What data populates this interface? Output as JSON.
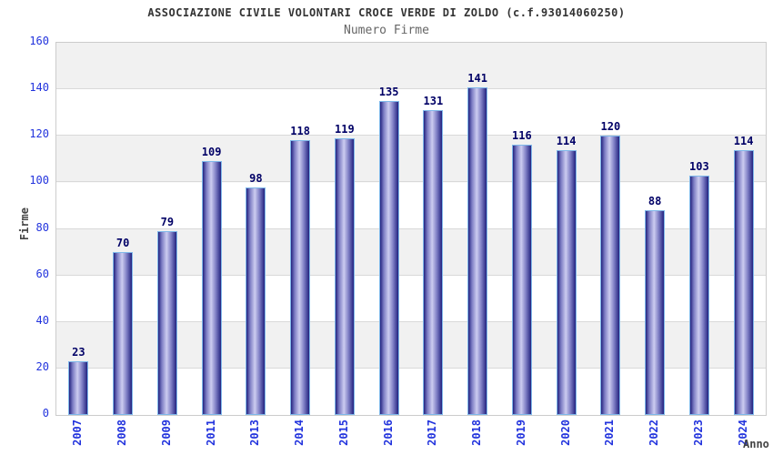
{
  "chart_data": {
    "type": "bar",
    "title": "ASSOCIAZIONE CIVILE VOLONTARI CROCE VERDE DI ZOLDO (c.f.93014060250)",
    "subtitle": "Numero Firme",
    "xlabel": "Anno",
    "ylabel": "Firme",
    "categories": [
      "2007",
      "2008",
      "2009",
      "2011",
      "2013",
      "2014",
      "2015",
      "2016",
      "2017",
      "2018",
      "2019",
      "2020",
      "2021",
      "2022",
      "2023",
      "2024"
    ],
    "values": [
      23,
      70,
      79,
      109,
      98,
      118,
      119,
      135,
      131,
      141,
      116,
      114,
      120,
      88,
      103,
      114
    ],
    "ylim": [
      0,
      160
    ],
    "ytick_step": 20,
    "grid": "horizontal-bands",
    "legend": "none",
    "colors": {
      "bar_dark": "#23237f",
      "bar_mid": "#7d7dc4",
      "bar_light": "#ccccf0",
      "bar_border": "#7fb8ea",
      "axis_tick_label": "#2233dd",
      "value_label": "#000066",
      "title": "#333333",
      "subtitle": "#666666",
      "axis_title": "#444444",
      "band_gray": "#f1f1f1",
      "gridline": "#d9d9d9",
      "plot_border": "#cccccc"
    }
  }
}
